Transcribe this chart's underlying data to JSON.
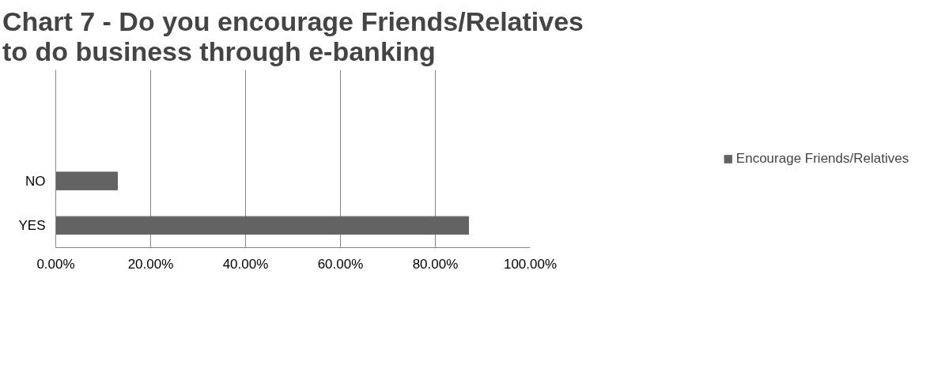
{
  "chart_data": {
    "type": "bar",
    "orientation": "horizontal",
    "title": "Chart 7 - Do you encourage Friends/Relatives to do business through e-banking",
    "categories": [
      null,
      null,
      "NO",
      "YES"
    ],
    "series": [
      {
        "name": "Encourage Friends/Relatives",
        "color": "#636363",
        "values": [
          null,
          null,
          13,
          87
        ]
      }
    ],
    "xlim": [
      0,
      100
    ],
    "xticks": [
      {
        "value": 0,
        "label": "0.00%"
      },
      {
        "value": 20,
        "label": "20.00%"
      },
      {
        "value": 40,
        "label": "40.00%"
      },
      {
        "value": 60,
        "label": "60.00%"
      },
      {
        "value": 80,
        "label": "80.00%"
      },
      {
        "value": 100,
        "label": "100.00%"
      }
    ],
    "grid": "x",
    "legend": "right"
  }
}
